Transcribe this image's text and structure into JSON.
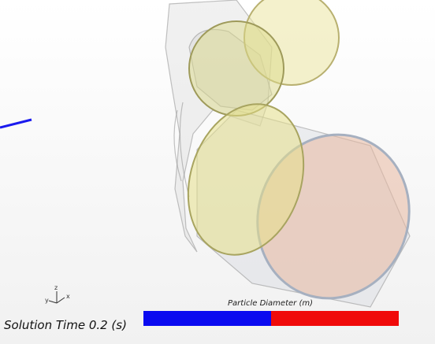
{
  "triad": {
    "labels": [
      "y",
      "z",
      "x"
    ]
  },
  "colorbar": {
    "title": "Particle Diameter (m)"
  },
  "solution_time": "Solution Time 0.2 (s)"
}
